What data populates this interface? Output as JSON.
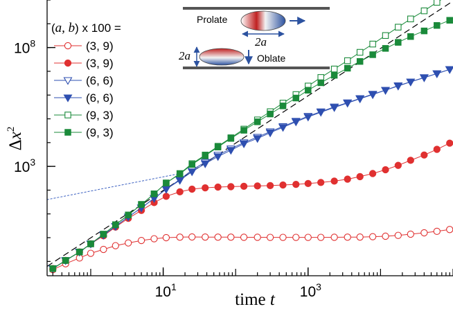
{
  "chart_data": {
    "type": "scatter",
    "title": "",
    "xlabel": "time t",
    "ylabel": "Δx²",
    "x_scale": "log",
    "y_scale": "log",
    "xlim": [
      0.25,
      100000
    ],
    "ylim": [
      0.025,
      10000000000
    ],
    "x_ticks": [
      {
        "value": 10,
        "base": "10",
        "exp": "1"
      },
      {
        "value": 1000,
        "base": "10",
        "exp": "3"
      }
    ],
    "y_ticks": [
      {
        "value": 1000,
        "base": "10",
        "exp": "3"
      },
      {
        "value": 100000000,
        "base": "10",
        "exp": "8"
      }
    ],
    "legend": {
      "placement": "top-left",
      "title": "(a, b) x 100 =",
      "entries": [
        "(3, 9)",
        "(3, 9)",
        "(6, 6)",
        "(6, 6)",
        "(9, 3)",
        "(9, 3)"
      ]
    },
    "inset": {
      "prolate_label": "Prolate",
      "oblate_label": "Oblate",
      "axis_symbol": "2a"
    },
    "reference_lines": [
      {
        "name": "ballistic",
        "style": "dashed",
        "color": "#000000",
        "x": [
          0.25,
          100000
        ],
        "y": [
          0.062,
          9000000000.0
        ]
      },
      {
        "name": "diffusive",
        "style": "dotted",
        "color": "#3a5fc0",
        "x": [
          0.2,
          16
        ],
        "y": [
          35,
          480
        ]
      }
    ],
    "series": [
      {
        "label": "(3, 9)",
        "marker": "circle",
        "filled": false,
        "color": "#e03030",
        "x": [
          0.3,
          0.45,
          0.7,
          1,
          1.5,
          2.2,
          3.3,
          5,
          7.5,
          11,
          17,
          25,
          38,
          57,
          86,
          130,
          200,
          300,
          450,
          680,
          1000,
          1500,
          2300,
          3500,
          5200,
          7800,
          11700,
          17500,
          26000,
          40000,
          60000,
          90000
        ],
        "y": [
          0.045,
          0.08,
          0.14,
          0.22,
          0.32,
          0.46,
          0.6,
          0.76,
          0.9,
          1.0,
          1.05,
          1.07,
          1.06,
          1.05,
          1.05,
          1.04,
          1.04,
          1.03,
          1.03,
          1.03,
          1.03,
          1.03,
          1.04,
          1.05,
          1.06,
          1.1,
          1.15,
          1.25,
          1.4,
          1.6,
          1.85,
          2.2
        ]
      },
      {
        "label": "(3, 9)",
        "marker": "circle",
        "filled": true,
        "color": "#e03030",
        "x": [
          0.3,
          0.45,
          0.7,
          1,
          1.5,
          2.2,
          3.3,
          5,
          7.5,
          11,
          17,
          25,
          38,
          57,
          86,
          130,
          200,
          300,
          450,
          680,
          1000,
          1500,
          2300,
          3500,
          5200,
          7800,
          11700,
          17500,
          26000,
          40000,
          60000,
          90000
        ],
        "y": [
          0.05,
          0.11,
          0.25,
          0.55,
          1.2,
          2.8,
          6.5,
          14,
          30,
          55,
          85,
          110,
          125,
          135,
          140,
          145,
          150,
          155,
          165,
          175,
          190,
          210,
          240,
          290,
          370,
          500,
          720,
          1100,
          1800,
          3000,
          5200,
          9500
        ]
      },
      {
        "label": "(6, 6)",
        "marker": "triangle-down",
        "filled": false,
        "color": "#2e4fb0",
        "x": [
          0.3,
          0.45,
          0.7,
          1,
          1.5,
          2.2,
          3.3,
          5,
          7.5,
          11,
          17,
          25,
          38,
          57,
          86,
          130,
          200,
          300,
          450,
          680,
          1000,
          1500,
          2300,
          3500,
          5200,
          7800,
          11700,
          17500,
          26000,
          40000,
          60000,
          90000
        ],
        "y": [
          0.05,
          0.11,
          0.25,
          0.55,
          1.3,
          3,
          7.5,
          18,
          45,
          110,
          280,
          700,
          1500,
          3000,
          5500,
          10000,
          17000,
          29000,
          48000,
          80000,
          130000,
          200000,
          320000,
          480000,
          720000,
          1100000,
          1600000,
          2500000,
          3600000,
          5500000,
          8000000,
          12000000
        ]
      },
      {
        "label": "(6, 6)",
        "marker": "triangle-down",
        "filled": true,
        "color": "#2e4fb0",
        "x": [
          0.3,
          0.45,
          0.7,
          1,
          1.5,
          2.2,
          3.3,
          5,
          7.5,
          11,
          17,
          25,
          38,
          57,
          86,
          130,
          200,
          300,
          450,
          680,
          1000,
          1500,
          2300,
          3500,
          5200,
          7800,
          11700,
          17500,
          26000,
          40000,
          60000,
          90000
        ],
        "y": [
          0.05,
          0.11,
          0.25,
          0.55,
          1.3,
          3,
          7.5,
          18,
          45,
          110,
          260,
          600,
          1300,
          2600,
          4800,
          9000,
          15000,
          26000,
          44000,
          75000,
          120000,
          190000,
          300000,
          460000,
          700000,
          1050000,
          1600000,
          2400000,
          3600000,
          5400000,
          8000000,
          12000000
        ]
      },
      {
        "label": "(9, 3)",
        "marker": "square",
        "filled": false,
        "color": "#1a8a3a",
        "x": [
          0.3,
          0.45,
          0.7,
          1,
          1.5,
          2.2,
          3.3,
          5,
          7.5,
          11,
          17,
          25,
          38,
          57,
          86,
          130,
          200,
          300,
          450,
          680,
          1000,
          1500,
          2300,
          3500,
          5200,
          7800,
          11700,
          17500,
          26000,
          40000,
          60000,
          90000
        ],
        "y": [
          0.05,
          0.11,
          0.25,
          0.55,
          1.4,
          3.5,
          9,
          25,
          70,
          200,
          500,
          1300,
          3000,
          7000,
          16000,
          37000,
          90000,
          200000,
          460000,
          1050000,
          2400000,
          5500000,
          12500000,
          28000000,
          63000000,
          140000000,
          320000000,
          720000000,
          1600000000,
          3500000000,
          8000000000,
          17000000000
        ]
      },
      {
        "label": "(9, 3)",
        "marker": "square",
        "filled": true,
        "color": "#1a8a3a",
        "x": [
          0.3,
          0.45,
          0.7,
          1,
          1.5,
          2.2,
          3.3,
          5,
          7.5,
          11,
          17,
          25,
          38,
          57,
          86,
          130,
          200,
          300,
          450,
          680,
          1000,
          1500,
          2300,
          3500,
          5200,
          7800,
          11700,
          17500,
          26000,
          40000,
          60000,
          90000
        ],
        "y": [
          0.05,
          0.11,
          0.25,
          0.55,
          1.4,
          3.5,
          9,
          25,
          70,
          200,
          480,
          1200,
          2800,
          6500,
          15000,
          33000,
          75000,
          160000,
          350000,
          750000,
          1600000,
          3300000,
          6800000,
          13500000,
          26000000,
          50000000,
          92000000,
          165000000,
          290000000,
          500000000,
          850000000,
          1400000000
        ]
      }
    ]
  }
}
